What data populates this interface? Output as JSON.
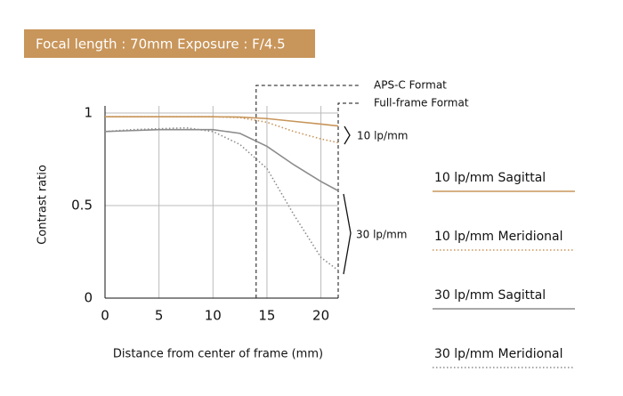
{
  "chart_data": {
    "type": "line",
    "header": "Focal length : 70mm Exposure : F/4.5",
    "xlabel": "Distance from center of frame (mm)",
    "ylabel": "Contrast ratio",
    "x": [
      0,
      2.5,
      5,
      7.5,
      10,
      12.5,
      15,
      17.5,
      20,
      21.6
    ],
    "series": [
      {
        "name": "10 lp/mm Sagittal",
        "color": "#c8955a",
        "dash": "solid",
        "values": [
          0.98,
          0.98,
          0.98,
          0.98,
          0.98,
          0.978,
          0.97,
          0.955,
          0.94,
          0.93
        ]
      },
      {
        "name": "10 lp/mm Meridional",
        "color": "#c8955a",
        "dash": "dotted",
        "values": [
          0.98,
          0.98,
          0.98,
          0.98,
          0.98,
          0.975,
          0.95,
          0.9,
          0.86,
          0.84
        ]
      },
      {
        "name": "30 lp/mm Sagittal",
        "color": "#8c8c8c",
        "dash": "solid",
        "values": [
          0.9,
          0.905,
          0.91,
          0.91,
          0.91,
          0.89,
          0.82,
          0.72,
          0.63,
          0.58
        ]
      },
      {
        "name": "30 lp/mm Meridional",
        "color": "#8c8c8c",
        "dash": "dotted",
        "values": [
          0.9,
          0.91,
          0.915,
          0.92,
          0.9,
          0.83,
          0.7,
          0.45,
          0.22,
          0.15
        ]
      }
    ],
    "xlim": [
      0,
      21.6
    ],
    "ylim": [
      0,
      1
    ],
    "xticks": [
      0,
      5,
      10,
      15,
      20
    ],
    "yticks": [
      0,
      0.5,
      1
    ],
    "grid": true,
    "markers": [
      {
        "label": "APS-C Format",
        "x": 14
      },
      {
        "label": "Full-frame Format",
        "x": 21.6
      }
    ],
    "annotations": [
      "10 lp/mm",
      "30 lp/mm"
    ]
  }
}
